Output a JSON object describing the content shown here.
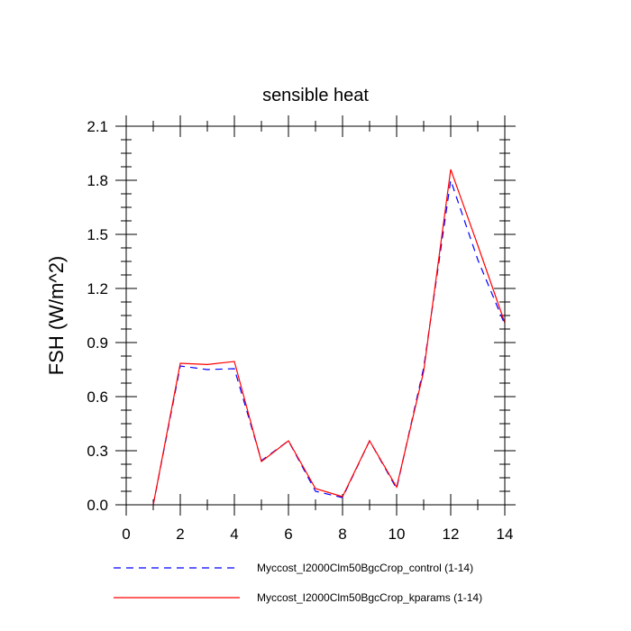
{
  "chart_data": {
    "type": "line",
    "title": "sensible heat",
    "xlabel": "",
    "ylabel": "FSH  (W/m^2)",
    "xlim": [
      0,
      14
    ],
    "ylim": [
      0.0,
      2.1
    ],
    "x_ticks": [
      "0",
      "2",
      "4",
      "6",
      "8",
      "10",
      "12",
      "14"
    ],
    "y_ticks": [
      "0.0",
      "0.3",
      "0.6",
      "0.9",
      "1.2",
      "1.5",
      "1.8",
      "2.1"
    ],
    "x": [
      1,
      2,
      3,
      4,
      5,
      6,
      7,
      8,
      9,
      10,
      11,
      12,
      13,
      14
    ],
    "series": [
      {
        "name": "Myccost_I2000Clm50BgcCrop_control (1-14)",
        "color": "#0000ff",
        "style": "dashed",
        "values": [
          0.0,
          0.77,
          0.75,
          0.755,
          0.245,
          0.355,
          0.075,
          0.04,
          0.355,
          0.09,
          0.76,
          1.8,
          1.36,
          1.0
        ]
      },
      {
        "name": "Myccost_I2000Clm50BgcCrop_kparams (1-14)",
        "color": "#ff0000",
        "style": "solid",
        "values": [
          0.0,
          0.785,
          0.778,
          0.795,
          0.24,
          0.355,
          0.09,
          0.045,
          0.355,
          0.098,
          0.74,
          1.86,
          1.44,
          1.01
        ]
      }
    ],
    "legend_position": "bottom"
  }
}
